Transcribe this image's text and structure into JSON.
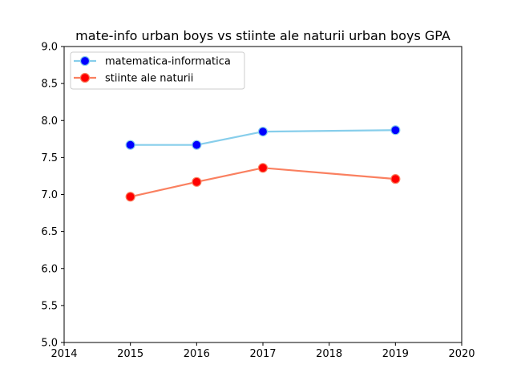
{
  "chart_data": {
    "type": "line",
    "title": "mate-info urban boys vs stiinte ale naturii urban boys GPA",
    "xlabel": "",
    "ylabel": "",
    "xlim": [
      2014,
      2020
    ],
    "ylim": [
      5.0,
      9.0
    ],
    "x_ticks": [
      "2014",
      "2015",
      "2016",
      "2017",
      "2018",
      "2019",
      "2020"
    ],
    "y_ticks": [
      "5.0",
      "5.5",
      "6.0",
      "6.5",
      "7.0",
      "7.5",
      "8.0",
      "8.5",
      "9.0"
    ],
    "grid": false,
    "legend_position": "top-left",
    "series": [
      {
        "name": "matematica-informatica",
        "line_color": "#87ceeb",
        "marker_color": "#0000ff",
        "points": [
          [
            2015,
            7.67
          ],
          [
            2016,
            7.67
          ],
          [
            2017,
            7.85
          ],
          [
            2019,
            7.87
          ]
        ]
      },
      {
        "name": "stiinte ale naturii",
        "line_color": "#fa8060",
        "marker_color": "#ff0000",
        "points": [
          [
            2015,
            6.97
          ],
          [
            2016,
            7.17
          ],
          [
            2017,
            7.36
          ],
          [
            2019,
            7.21
          ]
        ]
      }
    ]
  }
}
